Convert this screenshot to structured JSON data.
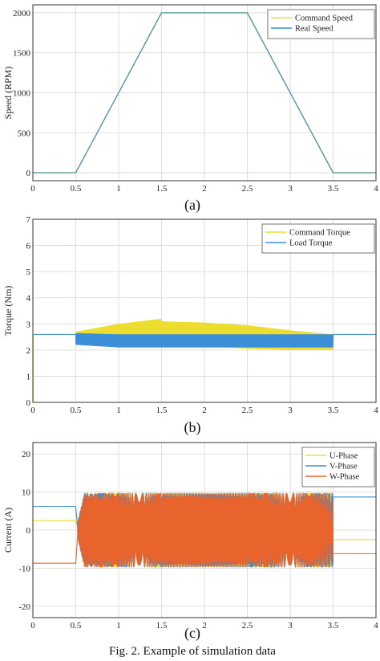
{
  "caption": "Fig. 2. Example of simulation data",
  "colors": {
    "yellow": "#EDDD2E",
    "blue": "#3A8FD6",
    "orange": "#E8642C",
    "grid": "#d6d6d6",
    "axis": "#333333"
  },
  "chart_data": [
    {
      "type": "line",
      "sublabel": "(a)",
      "ylabel": "Speed (RPM)",
      "xlabel": "",
      "xlim": [
        0,
        4
      ],
      "ylim": [
        -100,
        2100
      ],
      "xticks": [
        0,
        0.5,
        1,
        1.5,
        2,
        2.5,
        3,
        3.5,
        4
      ],
      "yticks": [
        0,
        500,
        1000,
        1500,
        2000
      ],
      "grid": true,
      "legend_position": "top-right",
      "series": [
        {
          "name": "Command Speed",
          "color": "#EDDD2E",
          "x": [
            0,
            0.5,
            1.5,
            2.5,
            3.5,
            4
          ],
          "y": [
            0,
            0,
            2000,
            2000,
            0,
            0
          ]
        },
        {
          "name": "Real Speed",
          "color": "#3A8FD6",
          "x": [
            0,
            0.5,
            1.5,
            2.5,
            3.5,
            4
          ],
          "y": [
            0,
            0,
            2000,
            2000,
            0,
            0
          ]
        }
      ]
    },
    {
      "type": "line",
      "sublabel": "(b)",
      "ylabel": "Torque (Nm)",
      "xlabel": "",
      "xlim": [
        0,
        4
      ],
      "ylim": [
        0,
        7
      ],
      "xticks": [
        0,
        0.5,
        1,
        1.5,
        2,
        2.5,
        3,
        3.5,
        4
      ],
      "yticks": [
        0,
        1,
        2,
        3,
        4,
        5,
        6,
        7
      ],
      "grid": true,
      "legend_position": "top-right",
      "series": [
        {
          "name": "Command Torque",
          "color": "#EDDD2E",
          "x": [
            0,
            0.5,
            0.5,
            1.0,
            1.5,
            1.5,
            2.0,
            2.5,
            3.0,
            3.5,
            3.5,
            4
          ],
          "y_upper": [
            2.6,
            2.6,
            2.7,
            3.0,
            3.2,
            3.1,
            3.05,
            2.95,
            2.75,
            2.6,
            2.6,
            2.6
          ],
          "y_lower": [
            2.6,
            2.6,
            2.3,
            2.2,
            2.2,
            2.2,
            2.15,
            2.05,
            2.0,
            2.0,
            2.6,
            2.6
          ]
        },
        {
          "name": "Load Torque",
          "color": "#3A8FD6",
          "x": [
            0,
            0.5,
            0.5,
            1.0,
            1.5,
            2.0,
            2.5,
            3.0,
            3.5,
            3.5,
            4
          ],
          "y_upper": [
            2.6,
            2.6,
            2.65,
            2.6,
            2.6,
            2.6,
            2.6,
            2.6,
            2.6,
            2.6,
            2.6
          ],
          "y_lower": [
            2.6,
            2.6,
            2.2,
            2.1,
            2.1,
            2.1,
            2.1,
            2.1,
            2.1,
            2.6,
            2.6
          ]
        }
      ]
    },
    {
      "type": "line",
      "sublabel": "(c)",
      "ylabel": "Current (A)",
      "xlabel": "",
      "xlim": [
        0,
        4
      ],
      "ylim": [
        -23,
        23
      ],
      "xticks": [
        0,
        0.5,
        1,
        1.5,
        2,
        2.5,
        3,
        3.5,
        4
      ],
      "yticks": [
        -20,
        -10,
        0,
        10,
        20
      ],
      "grid": true,
      "legend_position": "top-right",
      "series": [
        {
          "name": "U-Phase",
          "color": "#EDDD2E",
          "before": 2.5,
          "after": -2.5,
          "amplitude": 9.8
        },
        {
          "name": "V-Phase",
          "color": "#3A8FD6",
          "before": 6.2,
          "after": 8.7,
          "amplitude": 9.8
        },
        {
          "name": "W-Phase",
          "color": "#E8642C",
          "before": -8.7,
          "after": -6.2,
          "amplitude": 9.8
        }
      ]
    }
  ]
}
